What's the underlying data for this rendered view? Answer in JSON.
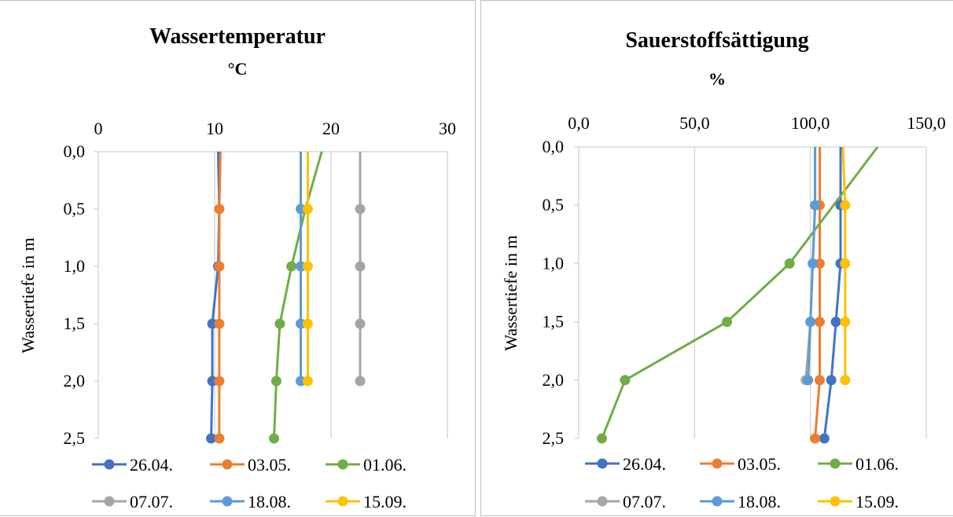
{
  "colors": {
    "26.04.": "#4472c4",
    "03.05.": "#ed7d31",
    "01.06.": "#70ad47",
    "07.07.": "#a5a5a5",
    "18.08.": "#5b9bd5",
    "15.09.": "#ffc000",
    "gridline": "#d9d9d9",
    "border": "#bfbfbf"
  },
  "chart_data": [
    {
      "type": "line",
      "title": "Wassertemperatur",
      "subtitle": "°C",
      "ylabel": "Wassertiefe in m",
      "xlabel": "",
      "x_axis_position": "top",
      "y_axis_reversed": true,
      "xlim": [
        0,
        30
      ],
      "ylim": [
        0,
        2.5
      ],
      "x_ticks": [
        "0",
        "10",
        "20",
        "30"
      ],
      "y_ticks": [
        "0,0",
        "0,5",
        "1,0",
        "1,5",
        "2,0",
        "2,5"
      ],
      "grid": "vertical",
      "legend": "bottom",
      "series": [
        {
          "name": "26.04.",
          "points": [
            [
              10.3,
              0
            ],
            [
              10.4,
              0.5
            ],
            [
              10.3,
              1.0
            ],
            [
              9.8,
              1.5
            ],
            [
              9.8,
              2.0
            ],
            [
              9.7,
              2.5
            ]
          ],
          "markers_at_depths": [
            1.0,
            1.5,
            2.0,
            2.5
          ]
        },
        {
          "name": "03.05.",
          "points": [
            [
              10.5,
              0
            ],
            [
              10.4,
              0.5
            ],
            [
              10.4,
              1.0
            ],
            [
              10.4,
              1.5
            ],
            [
              10.4,
              2.0
            ],
            [
              10.4,
              2.5
            ]
          ],
          "markers_at_depths": [
            0.5,
            1.0,
            1.5,
            2.0,
            2.5
          ]
        },
        {
          "name": "01.06.",
          "points": [
            [
              19.2,
              0
            ],
            [
              17.8,
              0.5
            ],
            [
              16.6,
              1.0
            ],
            [
              15.6,
              1.5
            ],
            [
              15.3,
              2.0
            ],
            [
              15.1,
              2.5
            ]
          ],
          "markers_at_depths": [
            1.0,
            1.5,
            2.0,
            2.5
          ]
        },
        {
          "name": "07.07.",
          "points": [
            [
              22.5,
              0
            ],
            [
              22.5,
              0.5
            ],
            [
              22.5,
              1.0
            ],
            [
              22.5,
              1.5
            ],
            [
              22.5,
              2.0
            ]
          ],
          "markers_at_depths": [
            0.5,
            1.0,
            1.5,
            2.0
          ]
        },
        {
          "name": "18.08.",
          "points": [
            [
              17.4,
              0
            ],
            [
              17.4,
              0.5
            ],
            [
              17.4,
              1.0
            ],
            [
              17.4,
              1.5
            ],
            [
              17.4,
              2.0
            ]
          ],
          "markers_at_depths": [
            0.5,
            1.0,
            1.5,
            2.0
          ]
        },
        {
          "name": "15.09.",
          "points": [
            [
              18.0,
              0
            ],
            [
              18.0,
              0.5
            ],
            [
              18.0,
              1.0
            ],
            [
              18.0,
              1.5
            ],
            [
              18.0,
              2.0
            ]
          ],
          "markers_at_depths": [
            0.5,
            1.0,
            1.5,
            2.0
          ]
        }
      ]
    },
    {
      "type": "line",
      "title": "Sauerstoffsättigung",
      "subtitle": "%",
      "ylabel": "Wassertiefe in m",
      "xlabel": "",
      "x_axis_position": "top",
      "y_axis_reversed": true,
      "xlim": [
        0,
        150
      ],
      "ylim": [
        0,
        2.5
      ],
      "x_ticks": [
        "0,0",
        "50,0",
        "100,0",
        "150,0"
      ],
      "y_ticks": [
        "0,0",
        "0,5",
        "1,0",
        "1,5",
        "2,0",
        "2,5"
      ],
      "grid": "vertical",
      "legend": "bottom",
      "series": [
        {
          "name": "26.04.",
          "points": [
            [
              113,
              0
            ],
            [
              113,
              0.5
            ],
            [
              113,
              1.0
            ],
            [
              111,
              1.5
            ],
            [
              109,
              2.0
            ],
            [
              106,
              2.5
            ]
          ],
          "markers_at_depths": [
            0.5,
            1.0,
            1.5,
            2.0,
            2.5
          ]
        },
        {
          "name": "03.05.",
          "points": [
            [
              104,
              0
            ],
            [
              104,
              0.5
            ],
            [
              104,
              1.0
            ],
            [
              104,
              1.5
            ],
            [
              104,
              2.0
            ],
            [
              102,
              2.5
            ]
          ],
          "markers_at_depths": [
            0.5,
            1.0,
            1.5,
            2.0,
            2.5
          ]
        },
        {
          "name": "01.06.",
          "points": [
            [
              129,
              0
            ],
            [
              91,
              1.0
            ],
            [
              64,
              1.5
            ],
            [
              20,
              2.0
            ],
            [
              10,
              2.5
            ]
          ],
          "markers_at_depths": [
            1.0,
            1.5,
            2.0,
            2.5
          ]
        },
        {
          "name": "07.07.",
          "points": [
            [
              102,
              0
            ],
            [
              102,
              0.5
            ],
            [
              101,
              1.0
            ],
            [
              100,
              1.5
            ],
            [
              98,
              2.0
            ]
          ],
          "markers_at_depths": [
            2.0
          ]
        },
        {
          "name": "18.08.",
          "points": [
            [
              102,
              0
            ],
            [
              102,
              0.5
            ],
            [
              101,
              1.0
            ],
            [
              100,
              1.5
            ],
            [
              99,
              2.0
            ]
          ],
          "markers_at_depths": [
            0.5,
            1.0,
            1.5,
            2.0
          ]
        },
        {
          "name": "15.09.",
          "points": [
            [
              114,
              0
            ],
            [
              115,
              0.5
            ],
            [
              115,
              1.0
            ],
            [
              115,
              1.5
            ],
            [
              115,
              2.0
            ]
          ],
          "markers_at_depths": [
            0.5,
            1.0,
            1.5,
            2.0
          ]
        }
      ]
    }
  ]
}
